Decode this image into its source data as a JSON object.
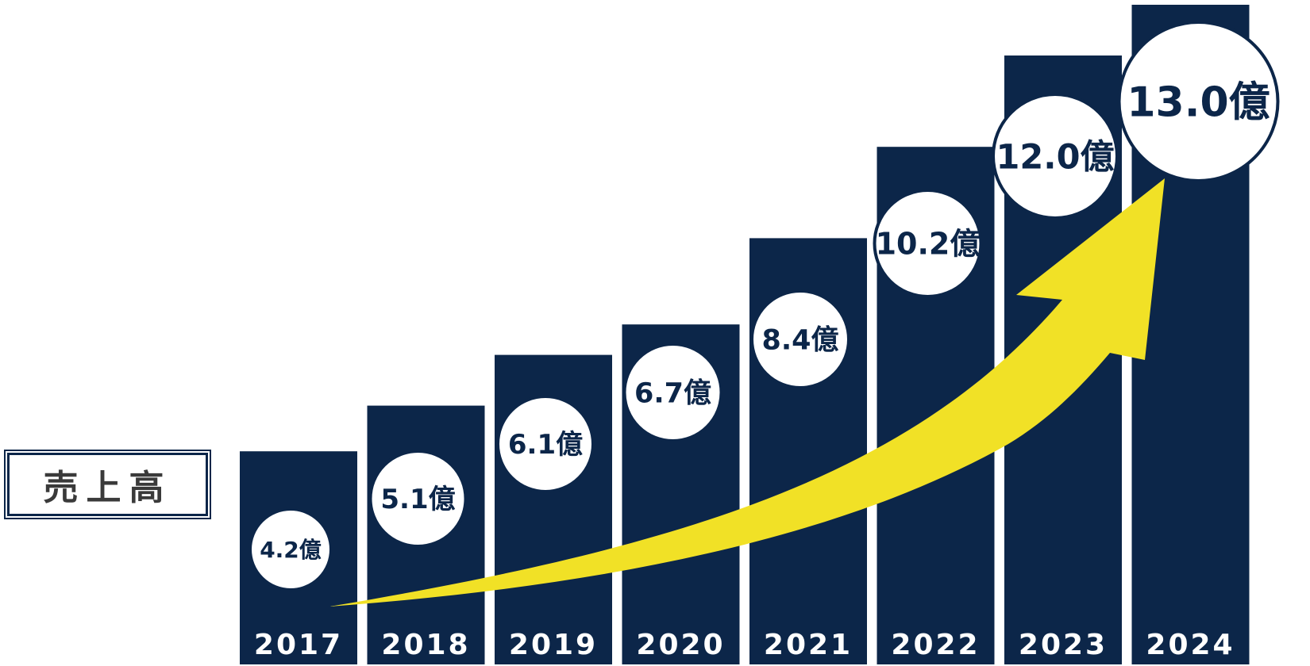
{
  "label": "売上高",
  "colors": {
    "bar": "#0c2649",
    "arrow": "#f1e126",
    "circle": "#ffffff"
  },
  "chart_data": {
    "type": "bar",
    "categories": [
      "2017",
      "2018",
      "2019",
      "2020",
      "2021",
      "2022",
      "2023",
      "2024"
    ],
    "values": [
      4.2,
      5.1,
      6.1,
      6.7,
      8.4,
      10.2,
      12.0,
      13.0
    ],
    "value_labels": [
      "4.2億",
      "5.1億",
      "6.1億",
      "6.7億",
      "8.4億",
      "10.2億",
      "12.0億",
      "13.0億"
    ],
    "unit": "億",
    "trend": "upward-arrow"
  }
}
